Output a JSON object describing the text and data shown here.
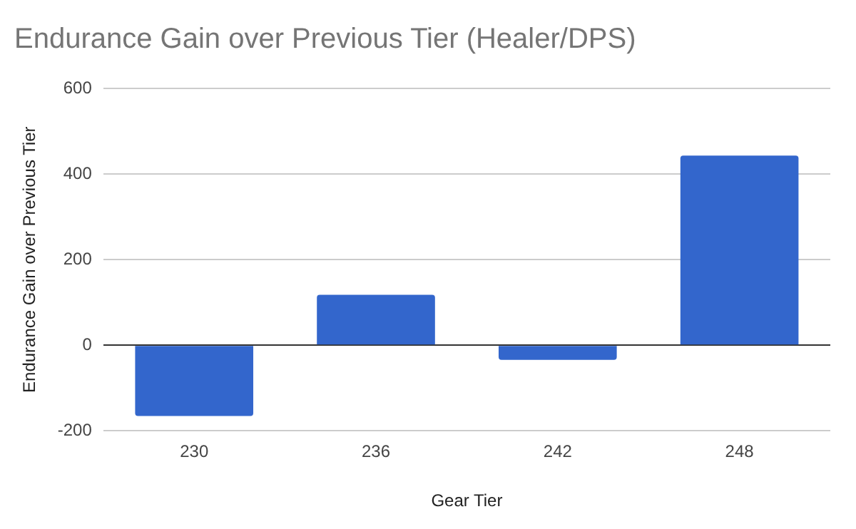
{
  "chart_data": {
    "type": "bar",
    "title": "Endurance Gain over Previous Tier (Healer/DPS)",
    "xlabel": "Gear Tier",
    "ylabel": "Endurance Gain over Previous Tier",
    "categories": [
      "230",
      "236",
      "242",
      "248"
    ],
    "values": [
      -165,
      118,
      -34,
      443
    ],
    "color": "#3366cc",
    "ylim": [
      -200,
      600
    ],
    "yticks": [
      -200,
      0,
      200,
      400,
      600
    ],
    "grid": "y"
  }
}
